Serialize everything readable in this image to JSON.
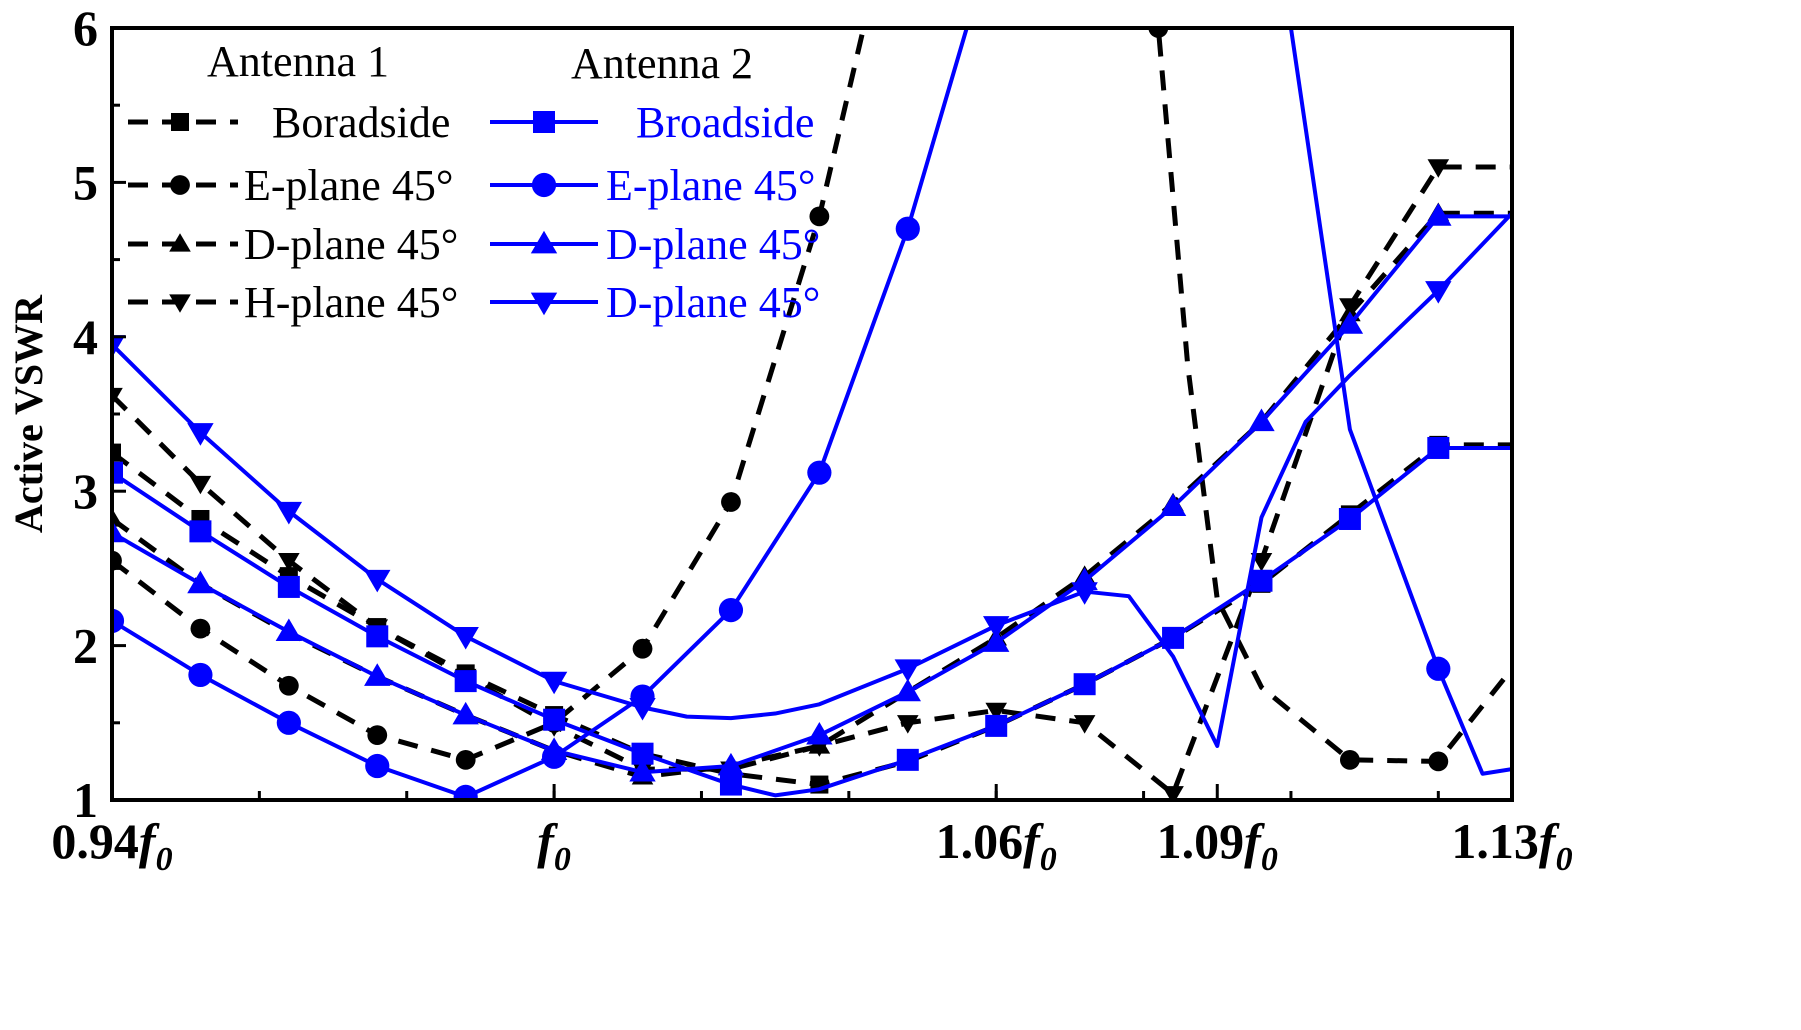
{
  "chart_data": {
    "type": "line",
    "title": "",
    "xlabel": "",
    "ylabel": "Active VSWR",
    "xlim": [
      0.94,
      1.13
    ],
    "ylim": [
      1,
      6
    ],
    "yticks": [
      "1",
      "2",
      "3",
      "4",
      "5",
      "6"
    ],
    "xticks": [
      {
        "value": 0.94,
        "prefix": "0.94",
        "italic": "f",
        "sub": "0"
      },
      {
        "value": 1.0,
        "prefix": "",
        "italic": "f",
        "sub": "0"
      },
      {
        "value": 1.06,
        "prefix": "1.06",
        "italic": "f",
        "sub": "0"
      },
      {
        "value": 1.09,
        "prefix": "1.09",
        "italic": "f",
        "sub": "0"
      },
      {
        "value": 1.13,
        "prefix": "1.13",
        "italic": "f",
        "sub": "0"
      }
    ],
    "legend": {
      "group1_title": "Antenna 1",
      "group2_title": "Antenna 2",
      "group1_color": "#000000",
      "group2_color": "#0000ff"
    },
    "series": [
      {
        "name": "Boradside",
        "group": "Antenna 1",
        "color": "#000000",
        "dash": true,
        "marker": "square",
        "x": [
          0.94,
          0.952,
          0.964,
          0.976,
          0.988,
          1.0,
          1.012,
          1.024,
          1.036,
          1.048,
          1.06,
          1.072,
          1.084,
          1.096,
          1.108,
          1.12,
          1.13
        ],
        "y": [
          3.25,
          2.82,
          2.45,
          2.12,
          1.82,
          1.55,
          1.3,
          1.17,
          1.1,
          1.25,
          1.48,
          1.75,
          2.05,
          2.4,
          2.85,
          3.3,
          3.3
        ]
      },
      {
        "name": "E-plane 45°",
        "group": "Antenna 1",
        "color": "#000000",
        "dash": true,
        "marker": "circle",
        "x": [
          0.94,
          0.952,
          0.964,
          0.976,
          0.988,
          1.0,
          1.012,
          1.024,
          1.036,
          1.042,
          1.048,
          1.06,
          1.072,
          1.082,
          1.086,
          1.09,
          1.096,
          1.108,
          1.12,
          1.13
        ],
        "y": [
          2.55,
          2.11,
          1.74,
          1.42,
          1.26,
          1.5,
          1.98,
          2.93,
          4.78,
          6.0,
          6.5,
          6.5,
          6.5,
          6.0,
          3.81,
          2.3,
          1.73,
          1.26,
          1.25,
          1.85
        ]
      },
      {
        "name": "D-plane 45°",
        "group": "Antenna 1",
        "color": "#000000",
        "dash": true,
        "marker": "triangle-up",
        "x": [
          0.94,
          0.952,
          0.964,
          0.976,
          0.988,
          1.0,
          1.012,
          1.024,
          1.036,
          1.048,
          1.06,
          1.072,
          1.084,
          1.096,
          1.108,
          1.12,
          1.13
        ],
        "y": [
          2.82,
          2.4,
          2.08,
          1.8,
          1.55,
          1.32,
          1.15,
          1.22,
          1.35,
          1.7,
          2.05,
          2.45,
          2.92,
          3.45,
          4.15,
          4.8,
          4.8
        ]
      },
      {
        "name": "H-plane 45°",
        "group": "Antenna 1",
        "color": "#000000",
        "dash": true,
        "marker": "triangle-down",
        "x": [
          0.94,
          0.952,
          0.964,
          0.976,
          0.988,
          1.0,
          1.012,
          1.024,
          1.036,
          1.048,
          1.06,
          1.072,
          1.084,
          1.096,
          1.108,
          1.12,
          1.13
        ],
        "y": [
          3.62,
          3.05,
          2.55,
          2.12,
          1.8,
          1.48,
          1.2,
          1.2,
          1.35,
          1.5,
          1.58,
          1.5,
          1.04,
          2.55,
          4.2,
          5.1,
          5.1
        ]
      },
      {
        "name": "Broadside",
        "group": "Antenna 2",
        "color": "#0000ff",
        "dash": false,
        "marker": "square",
        "x": [
          0.94,
          0.952,
          0.964,
          0.976,
          0.988,
          1.0,
          1.012,
          1.024,
          1.03,
          1.036,
          1.048,
          1.06,
          1.072,
          1.084,
          1.096,
          1.108,
          1.12,
          1.13
        ],
        "y": [
          3.12,
          2.74,
          2.38,
          2.06,
          1.77,
          1.52,
          1.3,
          1.1,
          1.03,
          1.07,
          1.26,
          1.48,
          1.75,
          2.05,
          2.42,
          2.82,
          3.28,
          3.28
        ]
      },
      {
        "name": "E-plane 45°",
        "group": "Antenna 2",
        "color": "#0000ff",
        "dash": false,
        "marker": "circle",
        "x": [
          0.94,
          0.952,
          0.964,
          0.976,
          0.988,
          1.0,
          1.012,
          1.024,
          1.036,
          1.048,
          1.056,
          1.066,
          1.076,
          1.086,
          1.096,
          1.1,
          1.108,
          1.12,
          1.126,
          1.13
        ],
        "y": [
          2.16,
          1.81,
          1.5,
          1.22,
          1.02,
          1.28,
          1.67,
          2.23,
          3.12,
          4.7,
          6.0,
          6.5,
          6.5,
          6.5,
          6.5,
          6.0,
          3.4,
          1.85,
          1.17,
          1.2
        ]
      },
      {
        "name": "D-plane 45°",
        "group": "Antenna 2",
        "color": "#0000ff",
        "dash": false,
        "marker": "triangle-up",
        "x": [
          0.94,
          0.952,
          0.964,
          0.976,
          0.988,
          1.0,
          1.012,
          1.024,
          1.036,
          1.048,
          1.06,
          1.072,
          1.084,
          1.096,
          1.108,
          1.12,
          1.13
        ],
        "y": [
          2.73,
          2.4,
          2.09,
          1.8,
          1.55,
          1.32,
          1.18,
          1.22,
          1.42,
          1.7,
          2.02,
          2.42,
          2.9,
          3.45,
          4.08,
          4.78,
          4.78
        ]
      },
      {
        "name": "D-plane 45°",
        "group": "Antenna 2",
        "color": "#0000ff",
        "dash": false,
        "marker": "triangle-down",
        "x": [
          0.94,
          0.952,
          0.964,
          0.976,
          0.988,
          1.0,
          1.012,
          1.018,
          1.024,
          1.03,
          1.036,
          1.048,
          1.06,
          1.072,
          1.078,
          1.084,
          1.09,
          1.096,
          1.102,
          1.108,
          1.12,
          1.13
        ],
        "y": [
          3.95,
          3.38,
          2.87,
          2.43,
          2.06,
          1.77,
          1.6,
          1.54,
          1.53,
          1.56,
          1.62,
          1.85,
          2.13,
          2.35,
          2.32,
          1.93,
          1.35,
          2.83,
          3.45,
          3.75,
          4.3,
          4.8
        ]
      }
    ]
  }
}
